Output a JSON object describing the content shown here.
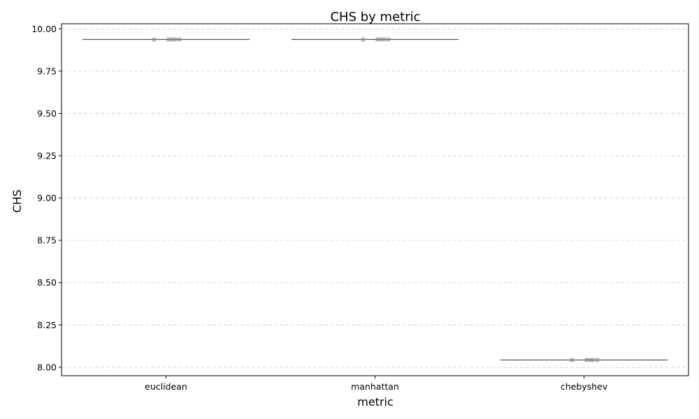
{
  "chart_data": {
    "type": "box",
    "title": "CHS by metric",
    "xlabel": "metric",
    "ylabel": "CHS",
    "categories": [
      "euclidean",
      "manhattan",
      "chebyshev"
    ],
    "ylim": [
      7.95,
      10.03
    ],
    "yticks": [
      "8.00",
      "8.25",
      "8.50",
      "8.75",
      "9.00",
      "9.25",
      "9.50",
      "9.75",
      "10.00"
    ],
    "grid": "y-dashed",
    "medians": [
      9.937,
      9.937,
      8.043
    ],
    "points": [
      {
        "category": "euclidean",
        "values": [
          9.937,
          9.937,
          9.937,
          9.937,
          9.937
        ]
      },
      {
        "category": "manhattan",
        "values": [
          9.937,
          9.937,
          9.937,
          9.937,
          9.937
        ]
      },
      {
        "category": "chebyshev",
        "values": [
          8.043,
          8.043,
          8.043,
          8.043,
          8.043
        ]
      }
    ],
    "colors": {
      "box_line": "#555555",
      "point": "#808080",
      "grid": "#cccccc"
    }
  }
}
